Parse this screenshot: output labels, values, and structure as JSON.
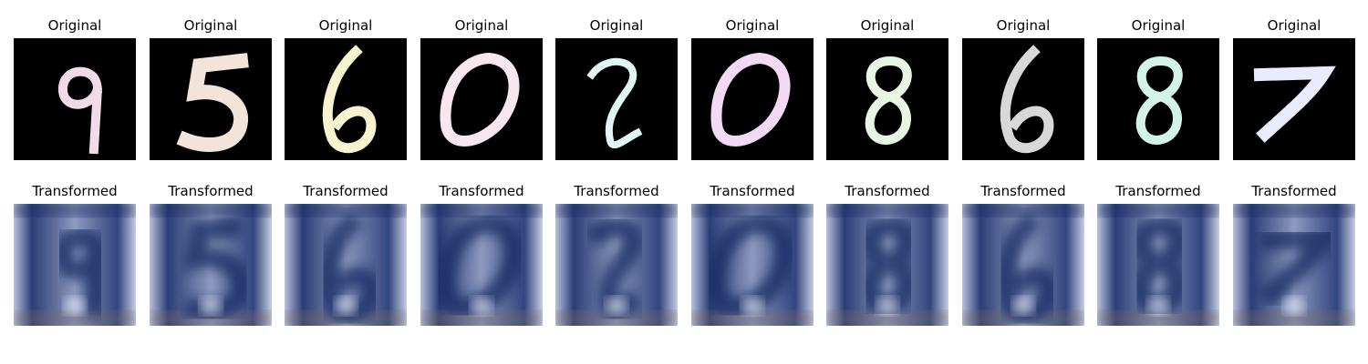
{
  "figure": {
    "top_row_titles": [
      "Original",
      "Original",
      "Original",
      "Original",
      "Original",
      "Original",
      "Original",
      "Original",
      "Original",
      "Original"
    ],
    "bottom_row_titles": [
      "Transformed",
      "Transformed",
      "Transformed",
      "Transformed",
      "Transformed",
      "Transformed",
      "Transformed",
      "Transformed",
      "Transformed",
      "Transformed"
    ]
  },
  "samples": [
    {
      "original_digit": "9",
      "ink_color": "#f1dbe8"
    },
    {
      "original_digit": "5",
      "ink_color": "#f3e4da"
    },
    {
      "original_digit": "6",
      "ink_color": "#f6f3cf"
    },
    {
      "original_digit": "0",
      "ink_color": "#f8e6ee"
    },
    {
      "original_digit": "2",
      "ink_color": "#dff6f3"
    },
    {
      "original_digit": "0",
      "ink_color": "#f2d9f4"
    },
    {
      "original_digit": "8",
      "ink_color": "#e6f6e3"
    },
    {
      "original_digit": "6",
      "ink_color": "#d8d8d8"
    },
    {
      "original_digit": "8",
      "ink_color": "#d4f3e8"
    },
    {
      "original_digit": "7",
      "ink_color": "#e9ecff"
    }
  ],
  "colors": {
    "original_background": "#000000",
    "transformed_base": "#9aa6c6",
    "transformed_dark": "#152a63"
  }
}
